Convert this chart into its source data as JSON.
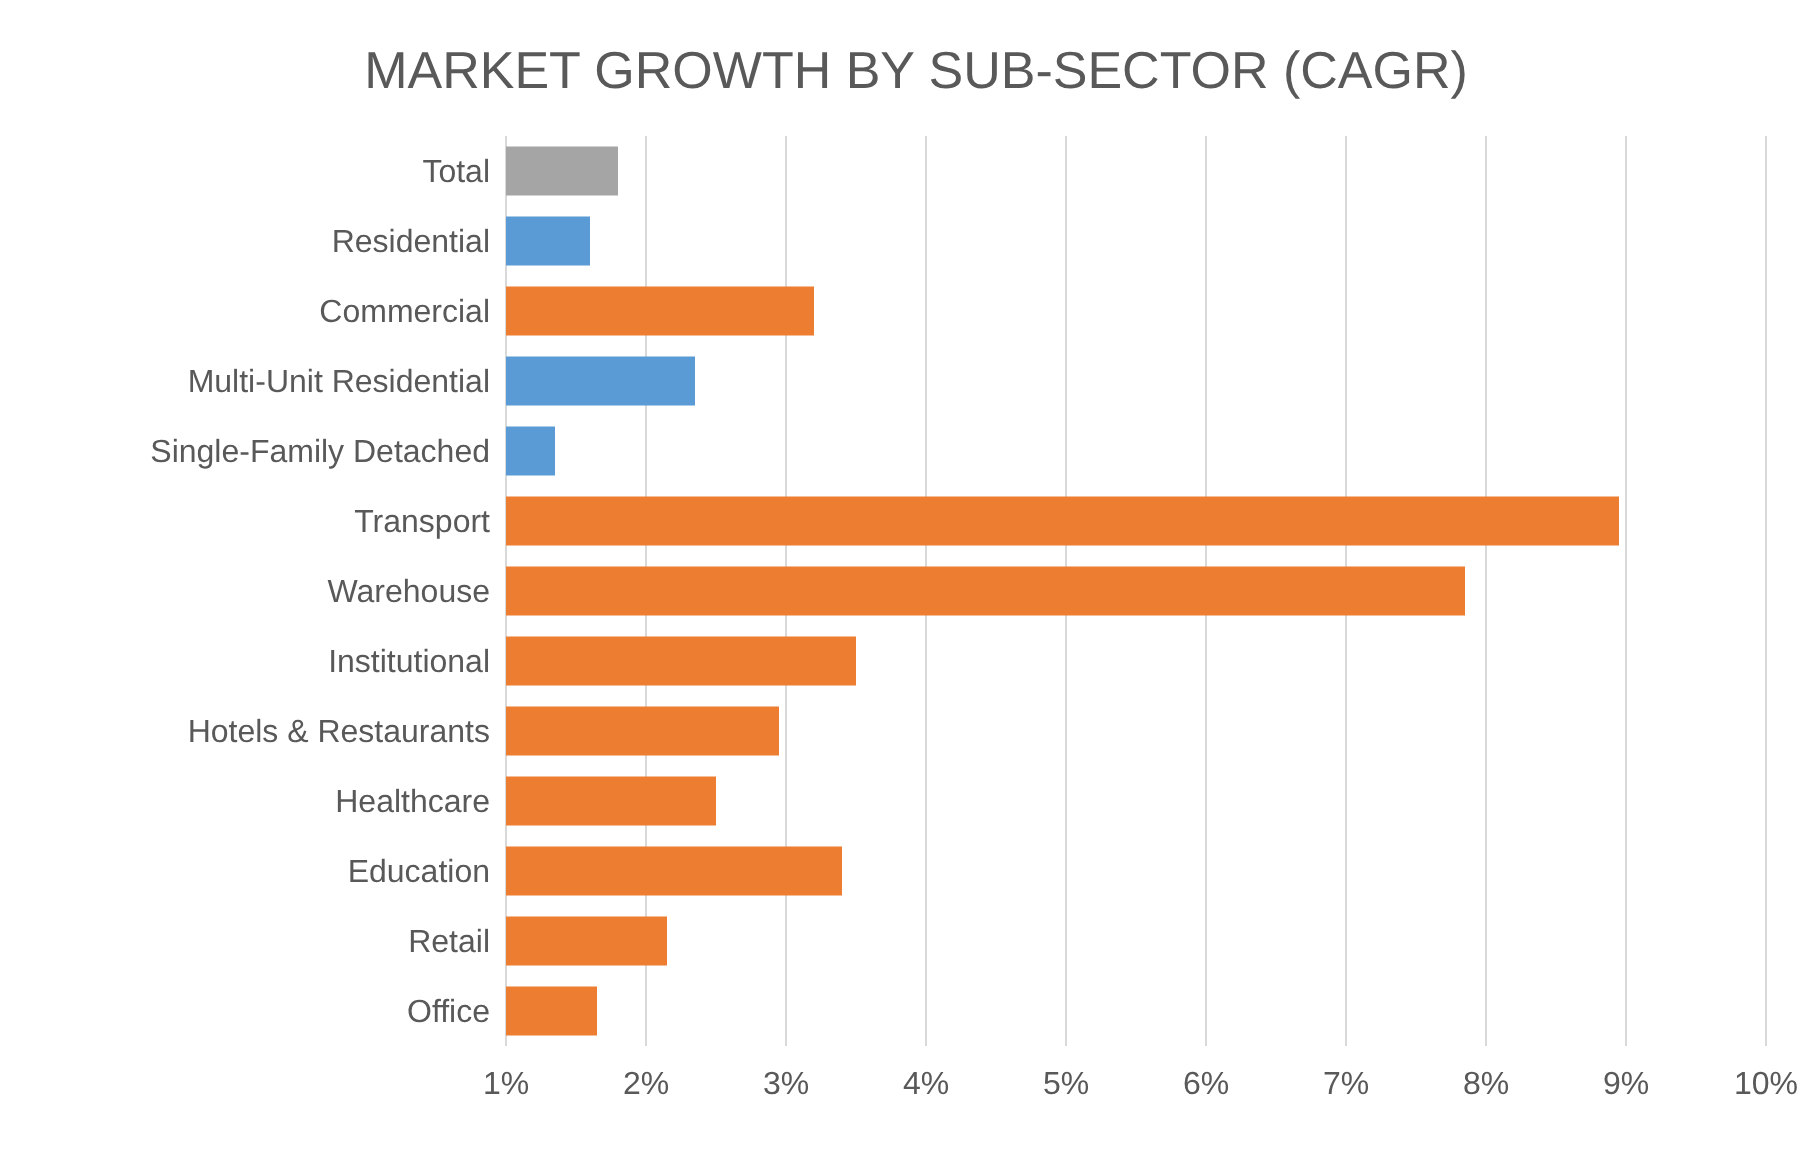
{
  "chart_data": {
    "type": "bar",
    "orientation": "horizontal",
    "title": "MARKET GROWTH BY SUB-SECTOR (CAGR)",
    "categories": [
      "Total",
      "Residential",
      "Commercial",
      "Multi-Unit Residential",
      "Single-Family Detached",
      "Transport",
      "Warehouse",
      "Institutional",
      "Hotels & Restaurants",
      "Healthcare",
      "Education",
      "Retail",
      "Office"
    ],
    "values": [
      1.8,
      1.6,
      3.2,
      2.35,
      1.35,
      8.95,
      7.85,
      3.5,
      2.95,
      2.5,
      3.4,
      2.15,
      1.65
    ],
    "colors": [
      "#a5a5a5",
      "#5b9bd5",
      "#ed7d31",
      "#5b9bd5",
      "#5b9bd5",
      "#ed7d31",
      "#ed7d31",
      "#ed7d31",
      "#ed7d31",
      "#ed7d31",
      "#ed7d31",
      "#ed7d31",
      "#ed7d31"
    ],
    "xlim": [
      1,
      10
    ],
    "xticks": [
      {
        "value": 1,
        "label": "1%"
      },
      {
        "value": 2,
        "label": "2%"
      },
      {
        "value": 3,
        "label": "3%"
      },
      {
        "value": 4,
        "label": "4%"
      },
      {
        "value": 5,
        "label": "5%"
      },
      {
        "value": 6,
        "label": "6%"
      },
      {
        "value": 7,
        "label": "7%"
      },
      {
        "value": 8,
        "label": "8%"
      },
      {
        "value": 9,
        "label": "9%"
      },
      {
        "value": 10,
        "label": "10%"
      }
    ],
    "grid": "x"
  }
}
